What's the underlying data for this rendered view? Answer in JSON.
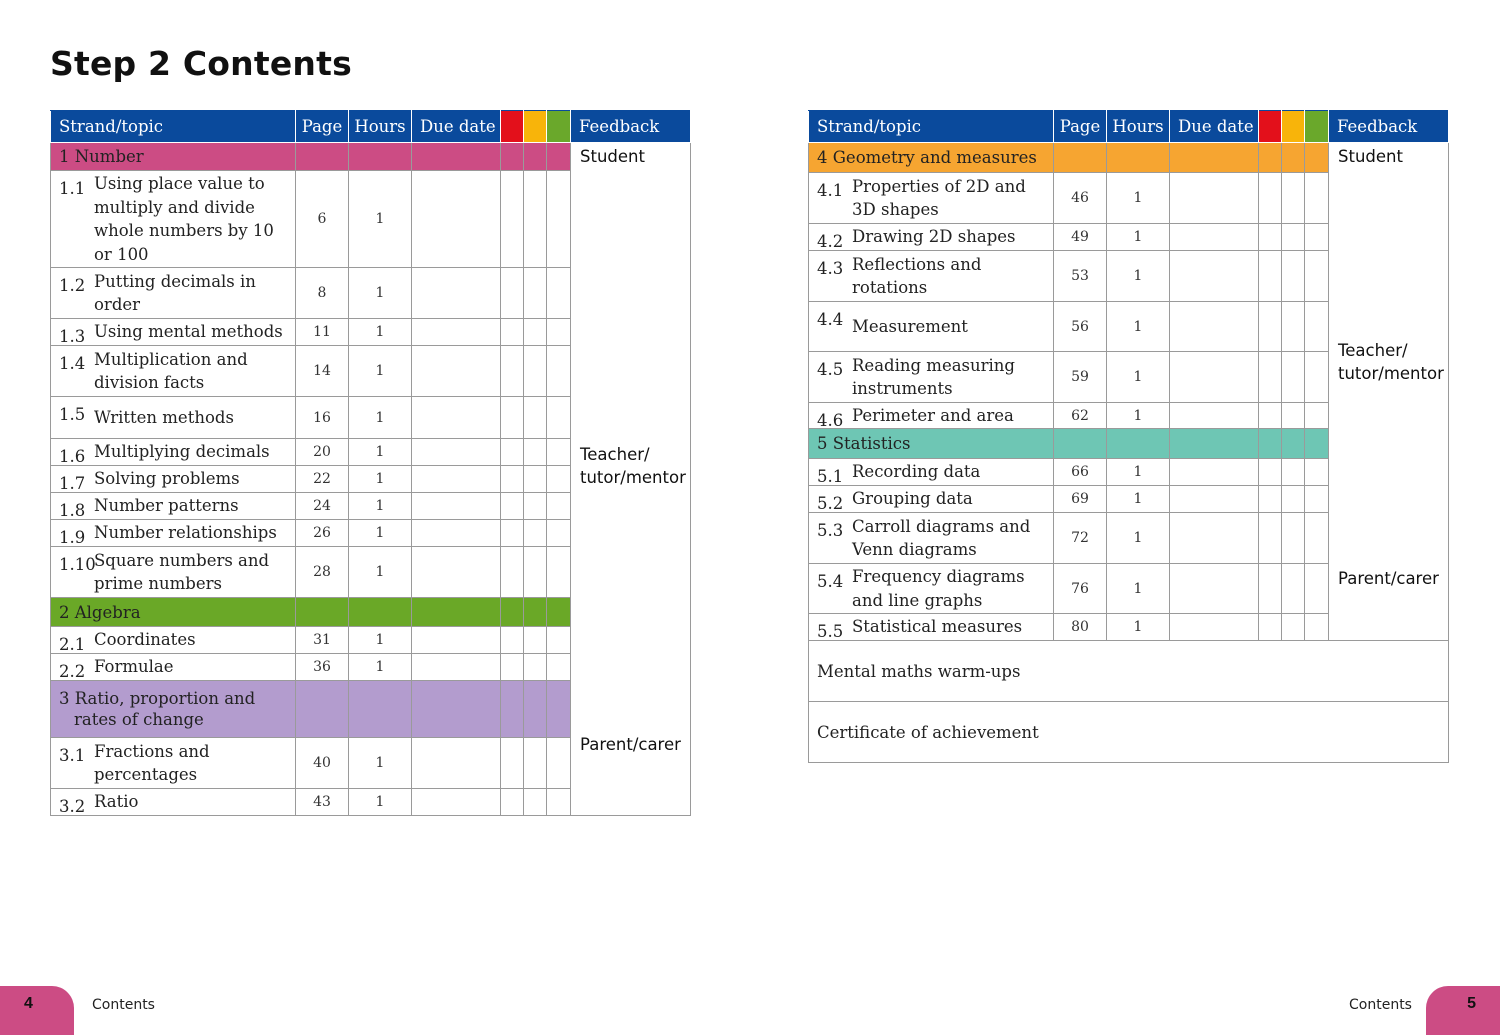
{
  "title": "Step 2 Contents",
  "headers": {
    "strand": "Strand/topic",
    "page": "Page",
    "hours": "Hours",
    "due": "Due date",
    "feedback": "Feedback",
    "rag_colors": [
      "#e3101b",
      "#f8b40a",
      "#6aa82b"
    ]
  },
  "feedback_labels": {
    "student": "Student",
    "teacher": "Teacher/\ntutor/mentor",
    "parent": "Parent/carer"
  },
  "left": {
    "number": {
      "heading": "1 Number",
      "topics": [
        {
          "num": "1.1",
          "title": "Using place value to multiply and divide whole numbers by 10 or 100",
          "page": "6",
          "hours": "1"
        },
        {
          "num": "1.2",
          "title": "Putting decimals in order",
          "page": "8",
          "hours": "1"
        },
        {
          "num": "1.3",
          "title": "Using mental methods",
          "page": "11",
          "hours": "1"
        },
        {
          "num": "1.4",
          "title": "Multiplication and division facts",
          "page": "14",
          "hours": "1"
        },
        {
          "num": "1.5",
          "title": "Written methods",
          "page": "16",
          "hours": "1"
        },
        {
          "num": "1.6",
          "title": "Multiplying decimals",
          "page": "20",
          "hours": "1"
        },
        {
          "num": "1.7",
          "title": "Solving problems",
          "page": "22",
          "hours": "1"
        },
        {
          "num": "1.8",
          "title": "Number patterns",
          "page": "24",
          "hours": "1"
        },
        {
          "num": "1.9",
          "title": "Number relationships",
          "page": "26",
          "hours": "1"
        },
        {
          "num": "1.10",
          "title": "Square numbers and prime numbers",
          "page": "28",
          "hours": "1"
        }
      ]
    },
    "algebra": {
      "heading": "2 Algebra",
      "topics": [
        {
          "num": "2.1",
          "title": "Coordinates",
          "page": "31",
          "hours": "1"
        },
        {
          "num": "2.2",
          "title": "Formulae",
          "page": "36",
          "hours": "1"
        }
      ]
    },
    "ratio": {
      "heading": "3 Ratio, proportion and rates of change",
      "topics": [
        {
          "num": "3.1",
          "title": "Fractions and percentages",
          "page": "40",
          "hours": "1"
        },
        {
          "num": "3.2",
          "title": "Ratio",
          "page": "43",
          "hours": "1"
        }
      ]
    }
  },
  "right": {
    "geometry": {
      "heading": "4 Geometry and measures",
      "topics": [
        {
          "num": "4.1",
          "title": "Properties of 2D and 3D shapes",
          "page": "46",
          "hours": "1"
        },
        {
          "num": "4.2",
          "title": "Drawing 2D shapes",
          "page": "49",
          "hours": "1"
        },
        {
          "num": "4.3",
          "title": "Reflections and rotations",
          "page": "53",
          "hours": "1"
        },
        {
          "num": "4.4",
          "title": "Measurement",
          "page": "56",
          "hours": "1"
        },
        {
          "num": "4.5",
          "title": "Reading measuring instruments",
          "page": "59",
          "hours": "1"
        },
        {
          "num": "4.6",
          "title": "Perimeter and area",
          "page": "62",
          "hours": "1"
        }
      ]
    },
    "statistics": {
      "heading": "5 Statistics",
      "topics": [
        {
          "num": "5.1",
          "title": "Recording data",
          "page": "66",
          "hours": "1"
        },
        {
          "num": "5.2",
          "title": "Grouping data",
          "page": "69",
          "hours": "1"
        },
        {
          "num": "5.3",
          "title": "Carroll diagrams and Venn diagrams",
          "page": "72",
          "hours": "1"
        },
        {
          "num": "5.4",
          "title": "Frequency diagrams and line graphs",
          "page": "76",
          "hours": "1"
        },
        {
          "num": "5.5",
          "title": "Statistical measures",
          "page": "80",
          "hours": "1"
        }
      ]
    },
    "extras": [
      "Mental maths warm-ups",
      "Certificate of achievement"
    ]
  },
  "footer": {
    "left_page": "4",
    "right_page": "5",
    "section": "Contents"
  }
}
